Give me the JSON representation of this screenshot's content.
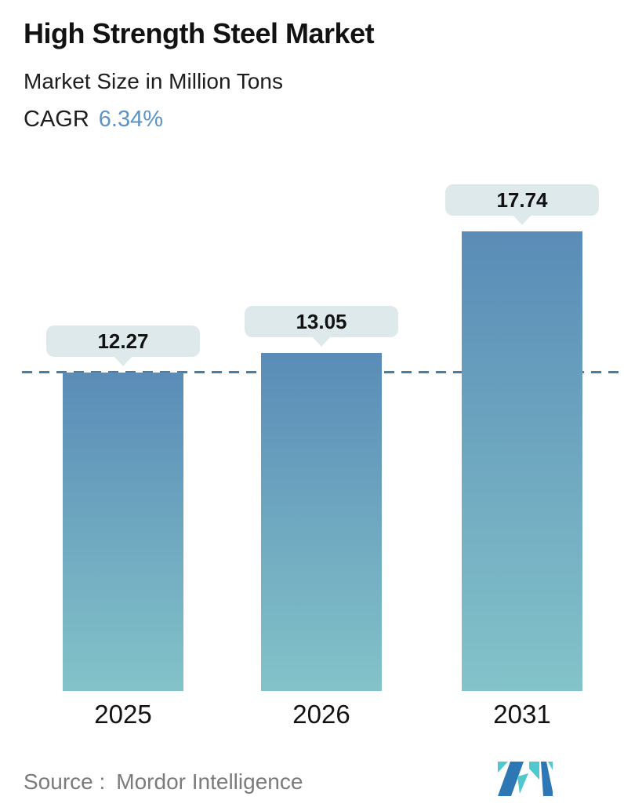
{
  "header": {
    "title": "High Strength Steel Market",
    "subtitle": "Market Size in Million Tons",
    "cagr_label": "CAGR",
    "cagr_value": "6.34%"
  },
  "chart_data": {
    "type": "bar",
    "title": "High Strength Steel Market",
    "subtitle": "Market Size in Million Tons",
    "unit": "Million Tons",
    "cagr_percent": 6.34,
    "categories": [
      "2025",
      "2026",
      "2031"
    ],
    "values": [
      12.27,
      13.05,
      17.74
    ],
    "value_labels": [
      "12.27",
      "13.05",
      "17.74"
    ],
    "baseline_value": 12.27,
    "ylim": [
      0,
      20
    ],
    "grid": false,
    "legend": "none",
    "colors": {
      "bar_gradient_top": "#5a8cb7",
      "bar_gradient_bottom": "#83c3c9",
      "pill_background": "#dee9ec",
      "dashed_line": "#4a7da3",
      "label_text": "#121212"
    }
  },
  "footer": {
    "source_label": "Source :",
    "source_value": "Mordor Intelligence",
    "logo": {
      "name": "mordor-intelligence-logo",
      "blue": "#2d77b4",
      "teal": "#4fc8ce"
    }
  },
  "colors": {
    "title_text": "#121212",
    "subtitle_text": "#1d1d1d",
    "cagr_value_text": "#5d92c5",
    "source_text": "#7b7b7b",
    "background": "#ffffff"
  }
}
